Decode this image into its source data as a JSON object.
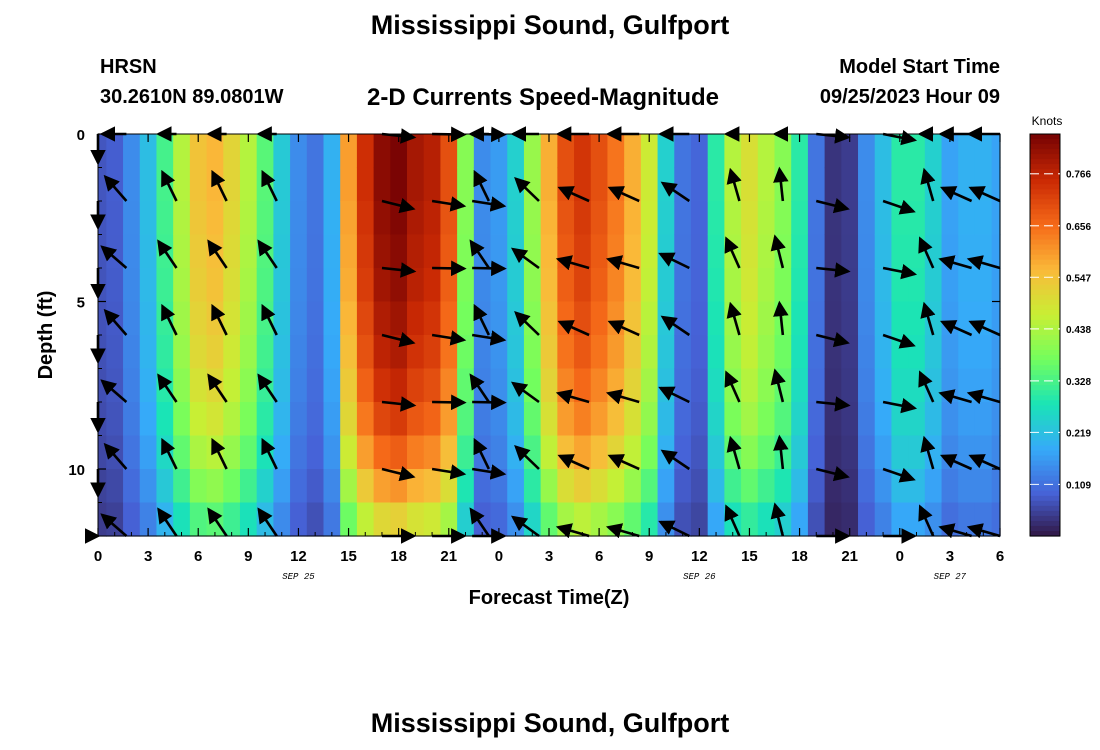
{
  "header": {
    "title": "Mississippi Sound, Gulfport",
    "station": "HRSN",
    "coordinates": "30.2610N  89.0801W",
    "plot_title": "2-D Currents Speed-Magnitude",
    "model_start_label": "Model Start Time",
    "model_start_value": "09/25/2023 Hour 09"
  },
  "footer": {
    "title": "Mississippi Sound, Gulfport"
  },
  "colors": {
    "scale": [
      "#30123b",
      "#4662d7",
      "#36aaf9",
      "#1ae4b6",
      "#72fe5e",
      "#c8ef34",
      "#faba39",
      "#f66b19",
      "#cb2a04",
      "#7a0403"
    ],
    "arrow": "#000000"
  },
  "chart_data": {
    "type": "heatmap",
    "xlabel": "Forecast Time(Z)",
    "ylabel": "Depth (ft)",
    "colorbar_label": "Knots",
    "colorbar_ticks": [
      "0.766",
      "0.656",
      "0.547",
      "0.438",
      "0.328",
      "0.219",
      "0.109"
    ],
    "colorbar_tick_values": [
      0.766,
      0.656,
      0.547,
      0.438,
      0.328,
      0.219,
      0.109
    ],
    "colorbar_range": [
      0,
      0.85
    ],
    "x_tick_labels": [
      "0",
      "3",
      "6",
      "9",
      "12",
      "15",
      "18",
      "21",
      "0",
      "3",
      "6",
      "9",
      "12",
      "15",
      "18",
      "21",
      "0",
      "3",
      "6"
    ],
    "x_range_hours": [
      0,
      54
    ],
    "date_labels": [
      {
        "text": "SEP 25",
        "hour": 12
      },
      {
        "text": "SEP 26",
        "hour": 36
      },
      {
        "text": "SEP 27",
        "hour": 51
      }
    ],
    "y_tick_labels": [
      "0",
      "5",
      "10"
    ],
    "y_tick_values": [
      0,
      5,
      10
    ],
    "y_range": [
      0,
      12
    ],
    "x_hours": [
      0,
      1,
      2,
      3,
      4,
      5,
      6,
      7,
      8,
      9,
      10,
      11,
      12,
      13,
      14,
      15,
      16,
      17,
      18,
      19,
      20,
      21,
      22,
      23,
      24,
      25,
      26,
      27,
      28,
      29,
      30,
      31,
      32,
      33,
      34,
      35,
      36,
      37,
      38,
      39,
      40,
      41,
      42,
      43,
      44,
      45,
      46,
      47,
      48,
      49,
      50,
      51,
      52,
      53,
      54
    ],
    "depth_ft": [
      0.5,
      1.5,
      2.5,
      3.5,
      4.5,
      5.5,
      6.5,
      7.5,
      8.5,
      9.5,
      10.5,
      11.5
    ],
    "surface_speed_knots": [
      0.08,
      0.09,
      0.15,
      0.22,
      0.33,
      0.45,
      0.55,
      0.57,
      0.52,
      0.45,
      0.35,
      0.24,
      0.15,
      0.12,
      0.2,
      0.6,
      0.75,
      0.83,
      0.85,
      0.8,
      0.78,
      0.7,
      0.4,
      0.15,
      0.17,
      0.25,
      0.42,
      0.58,
      0.7,
      0.74,
      0.7,
      0.65,
      0.58,
      0.48,
      0.25,
      0.12,
      0.1,
      0.3,
      0.45,
      0.5,
      0.45,
      0.4,
      0.3,
      0.12,
      0.04,
      0.05,
      0.15,
      0.22,
      0.3,
      0.3,
      0.25,
      0.18,
      0.2,
      0.2,
      0.18
    ],
    "depth_attenuation": [
      1.0,
      1.0,
      0.99,
      0.98,
      0.97,
      0.95,
      0.93,
      0.9,
      0.86,
      0.8,
      0.72,
      0.62
    ],
    "arrow_hours": [
      0,
      1.7,
      4.7,
      7.7,
      10.7,
      17,
      20,
      22.4,
      23.4,
      26.4,
      29.4,
      32.4,
      35.4,
      38.4,
      41,
      43,
      47,
      50,
      52.3,
      54
    ],
    "arrow_depths_ft": [
      0,
      2,
      4,
      6,
      8,
      10,
      12
    ],
    "arrow_direction_deg": [
      120,
      225,
      240,
      240,
      240,
      10,
      5,
      5,
      240,
      220,
      200,
      200,
      210,
      250,
      260,
      10,
      15,
      250,
      200,
      200
    ]
  }
}
